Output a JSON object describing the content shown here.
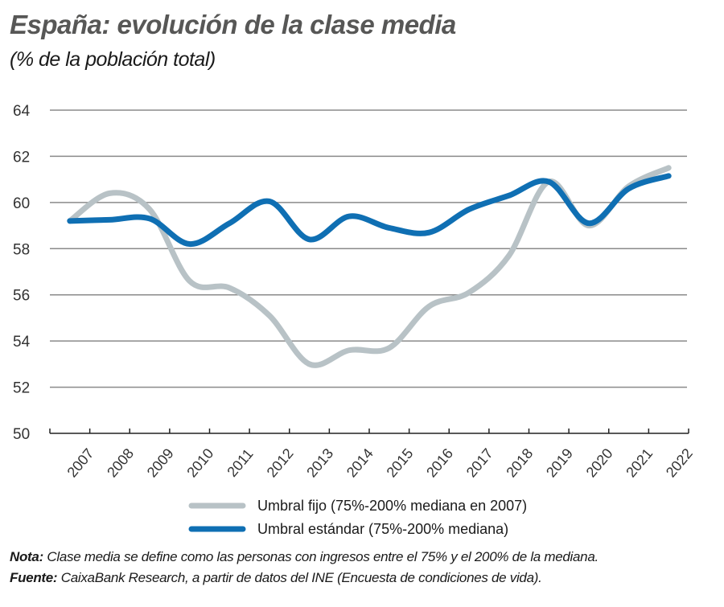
{
  "chart_data": {
    "type": "line",
    "title": "España: evolución de la clase media",
    "subtitle": "(% de la población total)",
    "categories": [
      "2007",
      "2008",
      "2009",
      "2010",
      "2011",
      "2012",
      "2013",
      "2014",
      "2015",
      "2016",
      "2017",
      "2018",
      "2019",
      "2020",
      "2021",
      "2022"
    ],
    "ylim": [
      50,
      64
    ],
    "yticks": [
      50,
      52,
      54,
      56,
      58,
      60,
      62,
      64
    ],
    "grid": true,
    "legend_position": "bottom",
    "series": [
      {
        "name": "Umbral fijo (75%-200% mediana en 2007)",
        "color": "#b8c2c6",
        "values": [
          59.2,
          60.4,
          59.7,
          56.6,
          56.3,
          55.1,
          53.0,
          53.6,
          53.7,
          55.5,
          56.1,
          57.7,
          60.9,
          59.0,
          60.7,
          61.5
        ]
      },
      {
        "name": "Umbral estándar (75%-200% mediana)",
        "color": "#0f6fb3",
        "values": [
          59.2,
          59.25,
          59.3,
          58.2,
          59.1,
          60.05,
          58.4,
          59.4,
          58.9,
          58.7,
          59.7,
          60.3,
          60.9,
          59.1,
          60.6,
          61.15
        ]
      }
    ]
  },
  "notes": {
    "nota_label": "Nota:",
    "nota_text": "Clase media se define como las personas con ingresos entre el 75% y el 200% de la mediana.",
    "fuente_label": "Fuente:",
    "fuente_text": "CaixaBank Research, a partir de datos del INE (Encuesta de condiciones de vida)."
  }
}
